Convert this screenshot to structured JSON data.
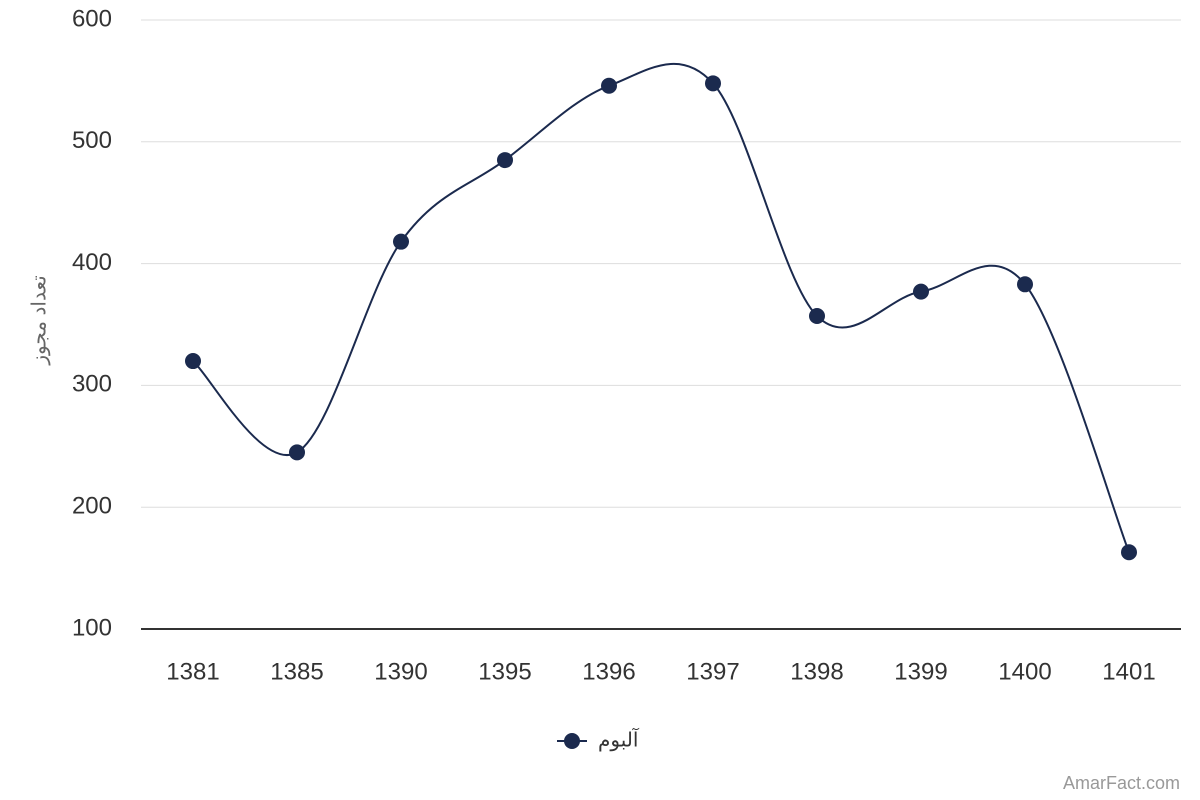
{
  "chart_data": {
    "type": "line",
    "y_label": "تعداد مجوز",
    "categories": [
      "1381",
      "1385",
      "1390",
      "1395",
      "1396",
      "1397",
      "1398",
      "1399",
      "1400",
      "1401"
    ],
    "series": [
      {
        "name": "آلبوم",
        "color": "#1b2a4e",
        "values": [
          320,
          245,
          418,
          485,
          546,
          548,
          357,
          377,
          383,
          163
        ]
      }
    ],
    "ylim": [
      100,
      600
    ],
    "yticks": [
      100,
      200,
      300,
      400,
      500,
      600
    ],
    "grid": true,
    "smooth": true,
    "legend": "bottom",
    "watermark": "AmarFact.com"
  }
}
